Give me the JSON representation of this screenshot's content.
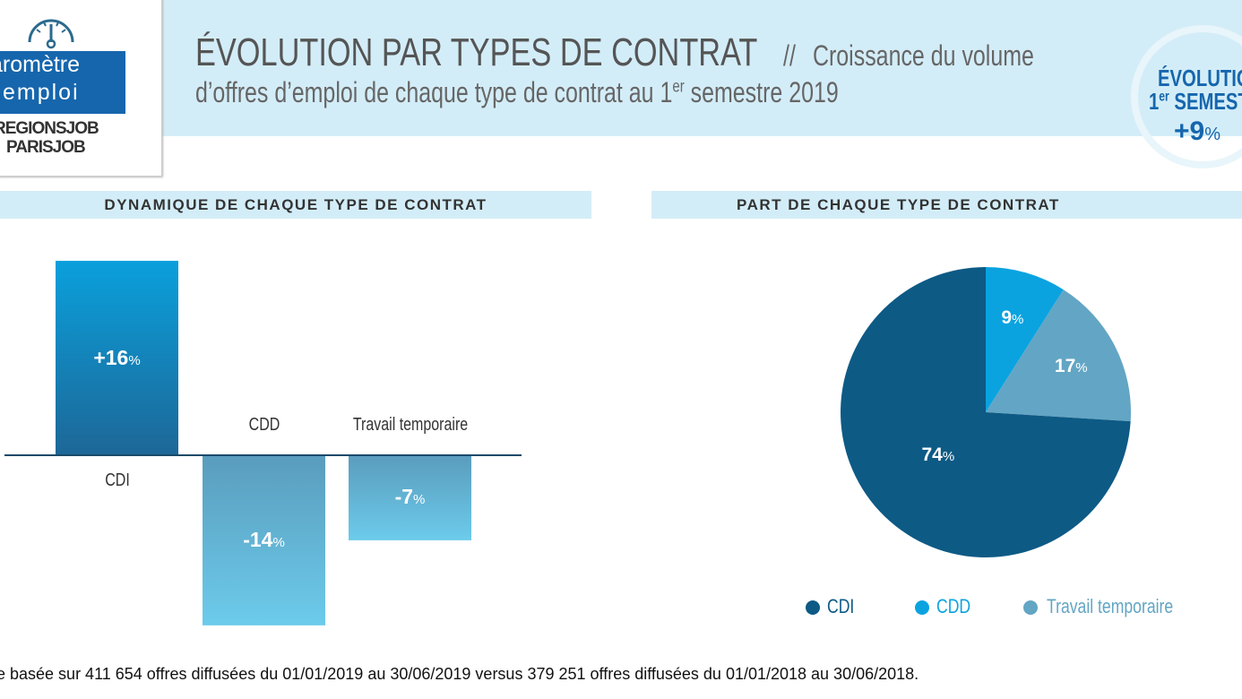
{
  "logo": {
    "line1": "aromètre",
    "line2": "emploi",
    "brand1": "REGIONSJOB",
    "brand2": "PARISJOB"
  },
  "header": {
    "title": "ÉVOLUTION PAR TYPES DE CONTRAT",
    "separator": "//",
    "subtitle_a": "Croissance du volume",
    "subtitle_b": "d’offres d’emploi de chaque type de contrat au 1",
    "subtitle_sup": "er",
    "subtitle_c": " semestre 2019"
  },
  "badge": {
    "line1": "ÉVOLUTION",
    "line2_num": "1",
    "line2_sup": "er",
    "line2": " SEMESTRE",
    "value": "+9",
    "unit": "%"
  },
  "chart_data": [
    {
      "type": "bar",
      "title": "DYNAMIQUE DE CHAQUE TYPE DE CONTRAT",
      "categories": [
        "CDI",
        "CDD",
        "Travail temporaire"
      ],
      "values": [
        16,
        -14,
        -7
      ],
      "labels": [
        "+16",
        "-14",
        "-7"
      ],
      "unit": "%",
      "colors": {
        "positive": "#0a8fd0",
        "negative": "#5fb6db"
      }
    },
    {
      "type": "pie",
      "title": "PART DE CHAQUE TYPE DE CONTRAT",
      "categories": [
        "CDI",
        "CDD",
        "Travail temporaire"
      ],
      "values": [
        74,
        9,
        17
      ],
      "labels": [
        "74",
        "9",
        "17"
      ],
      "unit": "%",
      "colors": [
        "#0d5a85",
        "#0aa3e0",
        "#63a5c4"
      ],
      "legend": "bottom"
    }
  ],
  "footer": "e basée sur 411 654 offres diffusées du 01/01/2019 au 30/06/2019 versus 379 251 offres diffusées du 01/01/2018 au 30/06/2018."
}
